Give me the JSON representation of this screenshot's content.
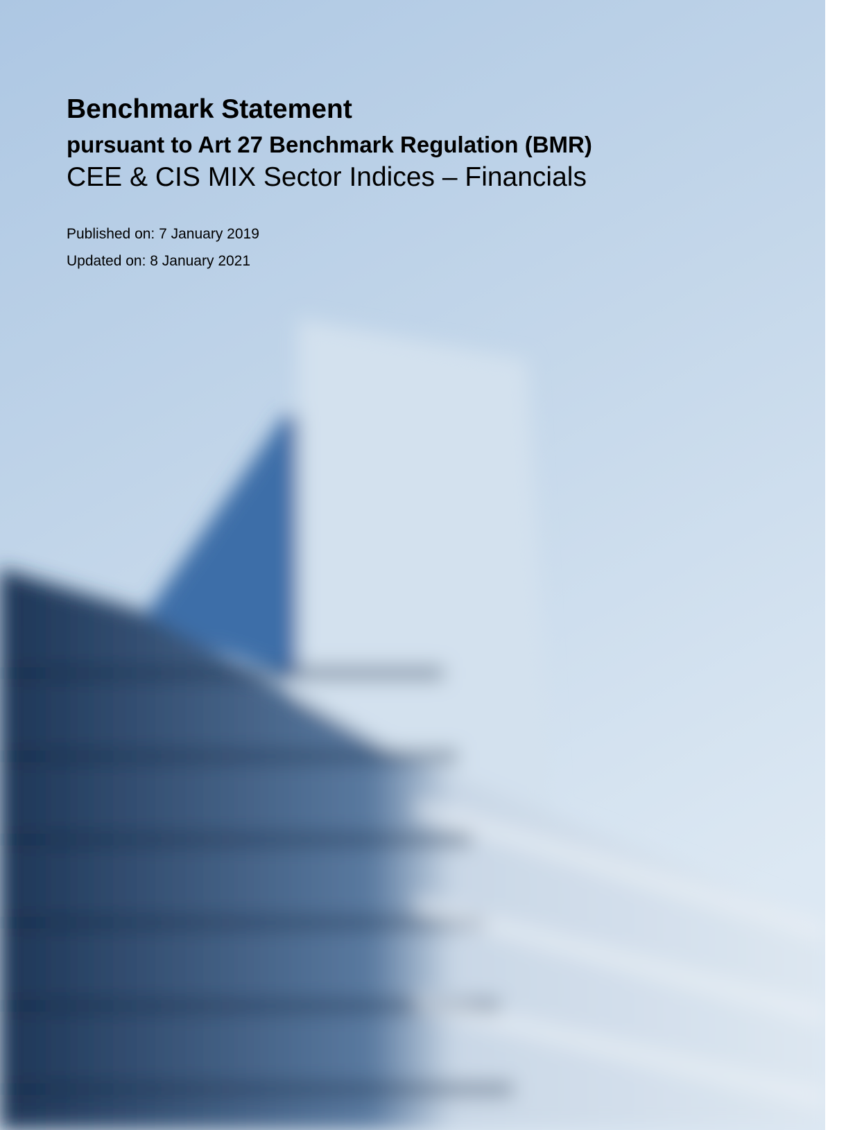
{
  "header": {
    "title": "Benchmark Statement",
    "subtitle": "pursuant to Art 27 Benchmark Regulation (BMR)",
    "index_name": "CEE & CIS MIX Sector Indices – Financials"
  },
  "dates": {
    "published": "Published on: 7 January 2019",
    "updated": "Updated on: 8 January 2021"
  }
}
